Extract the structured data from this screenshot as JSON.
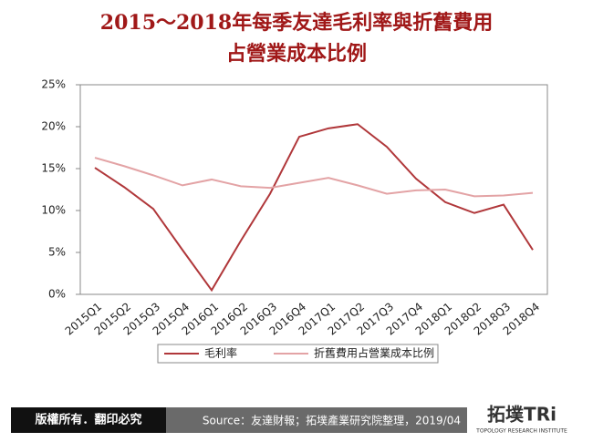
{
  "chart_data": {
    "type": "line",
    "title": [
      "2015～2018年每季友達毛利率與折舊費用",
      "占營業成本比例"
    ],
    "categories": [
      "2015Q1",
      "2015Q2",
      "2015Q3",
      "2015Q4",
      "2016Q1",
      "2016Q2",
      "2016Q3",
      "2016Q4",
      "2017Q1",
      "2017Q2",
      "2017Q3",
      "2017Q4",
      "2018Q1",
      "2018Q2",
      "2018Q3",
      "2018Q4"
    ],
    "series": [
      {
        "name": "毛利率",
        "color": "#b0373a",
        "values": [
          15.1,
          12.8,
          10.2,
          5.3,
          0.5,
          6.4,
          12.0,
          18.8,
          19.8,
          20.3,
          17.6,
          13.8,
          11.0,
          9.7,
          10.7,
          5.3
        ]
      },
      {
        "name": "折舊費用占營業成本比例",
        "color": "#e3a3a5",
        "values": [
          16.3,
          15.3,
          14.2,
          13.0,
          13.7,
          12.9,
          12.7,
          13.3,
          13.9,
          13.0,
          12.0,
          12.4,
          12.5,
          11.7,
          11.8,
          12.1
        ]
      }
    ],
    "ylim": [
      0,
      25
    ],
    "yticks": [
      {
        "value": 0,
        "label": "0%"
      },
      {
        "value": 5,
        "label": "5%"
      },
      {
        "value": 10,
        "label": "10%"
      },
      {
        "value": 15,
        "label": "15%"
      },
      {
        "value": 20,
        "label": "20%"
      },
      {
        "value": 25,
        "label": "25%"
      }
    ],
    "grid": false,
    "legend": "bottom"
  },
  "footer": {
    "copyright": "版權所有．翻印必究",
    "source": "Source：友達財報；拓墣產業研究院整理，2019/04",
    "logo": "拓墣TRi",
    "logo_sub": "TOPOLOGY RESEARCH INSTITUTE"
  }
}
